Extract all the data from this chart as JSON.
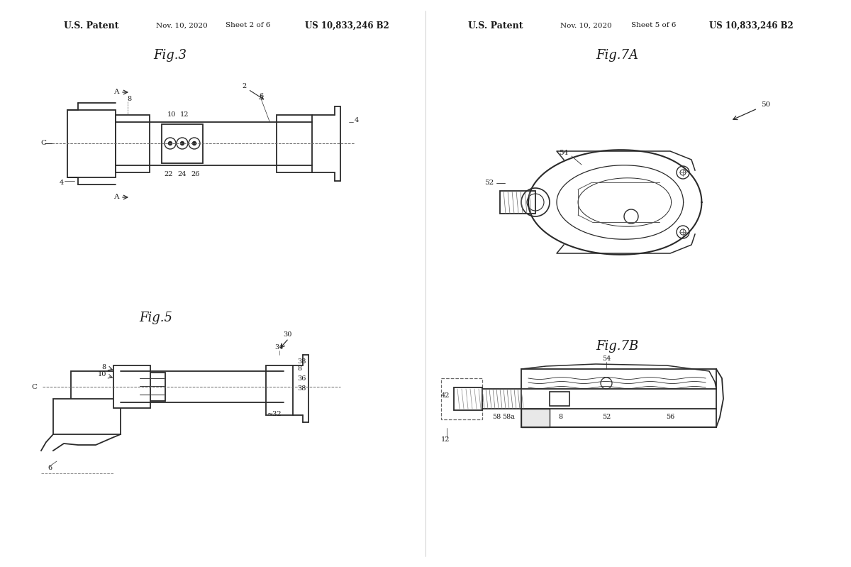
{
  "bg_color": "#ffffff",
  "header_left": "U.S. Patent",
  "header_left_date": "Nov. 10, 2020",
  "header_left_sheet": "Sheet 2 of 6",
  "header_left_patent": "US 10,833,246 B2",
  "header_right": "U.S. Patent",
  "header_right_date": "Nov. 10, 2020",
  "header_right_sheet": "Sheet 5 of 6",
  "header_right_patent": "US 10,833,246 B2",
  "fig3_title": "Fig.3",
  "fig5_title": "Fig.5",
  "fig7a_title": "Fig.7A",
  "fig7b_title": "Fig.7B",
  "line_color": "#2a2a2a",
  "text_color": "#1a1a1a"
}
